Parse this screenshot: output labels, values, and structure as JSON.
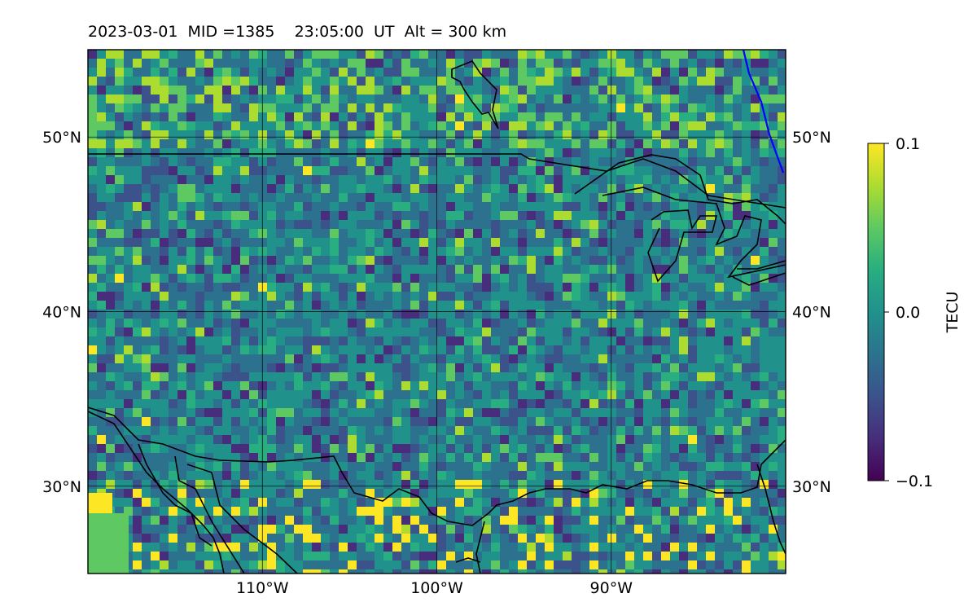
{
  "title": "2023-03-01  MID =1385    23:05:00  UT  Alt = 300 km",
  "map": {
    "lon_range": [
      -120,
      -80
    ],
    "lat_range": [
      25,
      55
    ],
    "lat_ticks": [
      {
        "value": 30,
        "label": "30°N"
      },
      {
        "value": 40,
        "label": "40°N"
      },
      {
        "value": 50,
        "label": "50°N"
      }
    ],
    "lon_ticks": [
      {
        "value": -110,
        "label": "110°W"
      },
      {
        "value": -100,
        "label": "100°W"
      },
      {
        "value": -90,
        "label": "90°W"
      }
    ],
    "grid": true,
    "colormap": "viridis",
    "colors": {
      "coastline": "#000000",
      "special_line": "#0000ff",
      "grid": "#000000"
    }
  },
  "colorbar": {
    "label": "TECU",
    "min": -0.1,
    "max": 0.1,
    "ticks": [
      {
        "value": 0.1,
        "label": "0.1"
      },
      {
        "value": 0.0,
        "label": "0.0"
      },
      {
        "value": -0.1,
        "label": "−0.1"
      }
    ]
  }
}
